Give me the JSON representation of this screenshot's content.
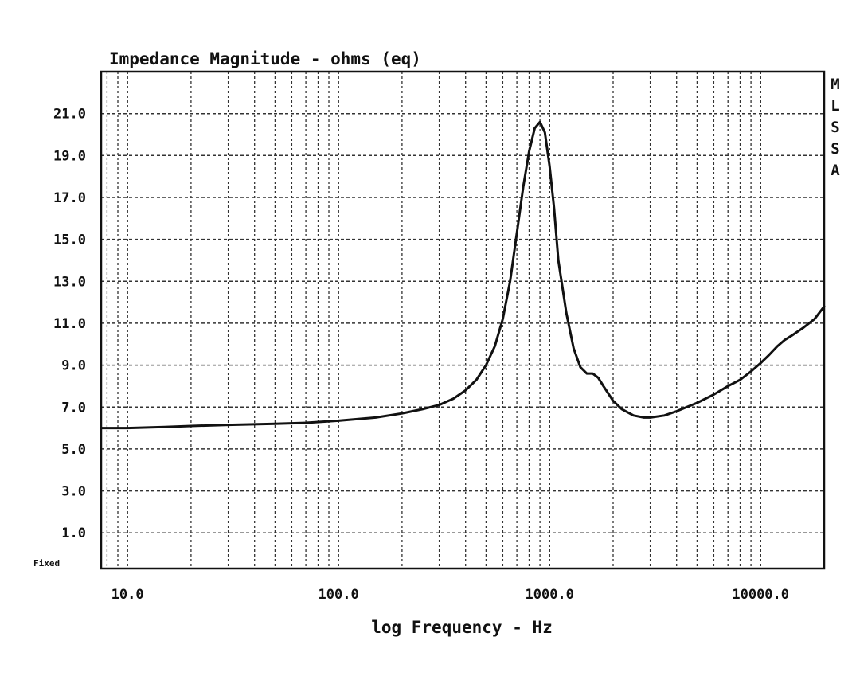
{
  "chart_data": {
    "type": "line",
    "title": "Impedance Magnitude - ohms (eq)",
    "xlabel": "log Frequency - Hz",
    "ylabel": "",
    "x_scale": "log",
    "xlim": [
      7.5,
      20000
    ],
    "ylim": [
      -0.7,
      23.0
    ],
    "grid": true,
    "x_ticks": [
      10,
      100,
      1000,
      10000
    ],
    "x_tick_labels": [
      "10.0",
      "100.0",
      "1000.0",
      "10000.0"
    ],
    "y_ticks": [
      1,
      3,
      5,
      7,
      9,
      11,
      13,
      15,
      17,
      19,
      21
    ],
    "y_tick_labels": [
      "1.0",
      "3.0",
      "5.0",
      "7.0",
      "9.0",
      "11.0",
      "13.0",
      "15.0",
      "17.0",
      "19.0",
      "21.0"
    ],
    "side_label": [
      "M",
      "L",
      "S",
      "S",
      "A"
    ],
    "footer_label": "Fixed",
    "series": [
      {
        "x": [
          7.5,
          10,
          15,
          20,
          30,
          50,
          70,
          100,
          150,
          200,
          250,
          300,
          350,
          400,
          450,
          500,
          550,
          600,
          650,
          700,
          750,
          800,
          850,
          900,
          950,
          1000,
          1050,
          1100,
          1200,
          1300,
          1400,
          1500,
          1600,
          1700,
          1800,
          2000,
          2200,
          2500,
          2800,
          3000,
          3500,
          4000,
          5000,
          6000,
          7000,
          8000,
          9000,
          10000,
          11000,
          12000,
          13000,
          14000,
          16000,
          18000,
          20000
        ],
        "y": [
          6.0,
          6.0,
          6.05,
          6.1,
          6.15,
          6.2,
          6.25,
          6.35,
          6.5,
          6.7,
          6.9,
          7.1,
          7.4,
          7.8,
          8.3,
          9.0,
          9.9,
          11.2,
          13.0,
          15.3,
          17.5,
          19.2,
          20.3,
          20.6,
          20.1,
          18.5,
          16.5,
          14.0,
          11.5,
          9.8,
          8.9,
          8.6,
          8.6,
          8.4,
          8.0,
          7.3,
          6.9,
          6.6,
          6.5,
          6.5,
          6.6,
          6.8,
          7.2,
          7.6,
          8.0,
          8.3,
          8.7,
          9.1,
          9.5,
          9.9,
          10.2,
          10.4,
          10.8,
          11.2,
          11.8
        ]
      }
    ]
  }
}
